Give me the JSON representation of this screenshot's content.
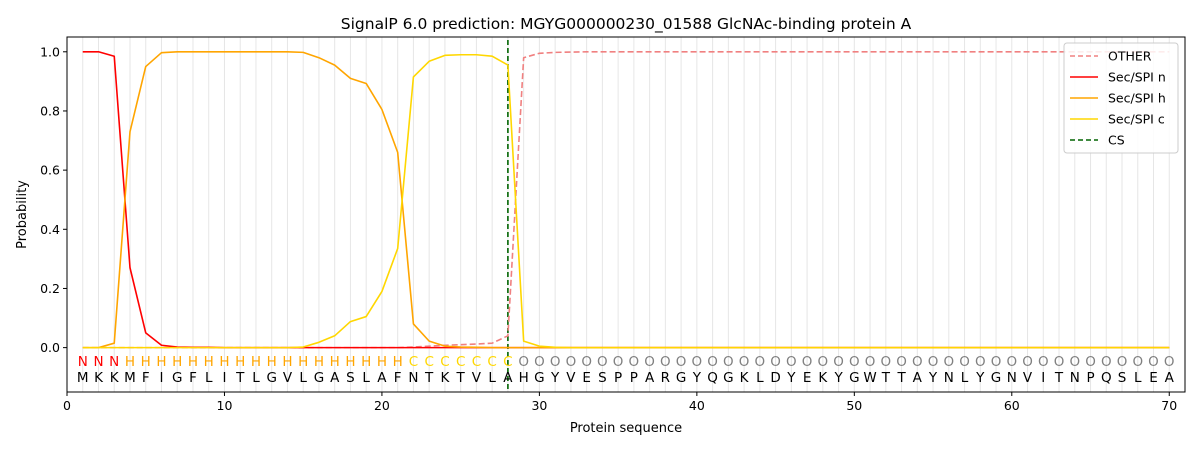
{
  "chart_data": {
    "type": "line",
    "title": "SignalP 6.0 prediction: MGYG000000230_01588 GlcNAc-binding protein A",
    "xlabel": "Protein sequence",
    "ylabel": "Probability",
    "xlim": [
      0,
      71
    ],
    "ylim": [
      -0.15,
      1.05
    ],
    "xticks": [
      0,
      10,
      20,
      30,
      40,
      50,
      60,
      70
    ],
    "yticks": [
      0.0,
      0.2,
      0.4,
      0.6,
      0.8,
      1.0
    ],
    "ytick_labels": [
      "0.0",
      "0.2",
      "0.4",
      "0.6",
      "0.8",
      "1.0"
    ],
    "grid": "vertical lines at each residue",
    "legend_position": "top-right",
    "sequence": [
      "M",
      "K",
      "K",
      "M",
      "F",
      "I",
      "G",
      "F",
      "L",
      "I",
      "T",
      "L",
      "G",
      "V",
      "L",
      "G",
      "A",
      "S",
      "L",
      "A",
      "F",
      "N",
      "T",
      "K",
      "T",
      "V",
      "L",
      "A",
      "H",
      "G",
      "Y",
      "V",
      "E",
      "S",
      "P",
      "P",
      "A",
      "R",
      "G",
      "Y",
      "Q",
      "G",
      "K",
      "L",
      "D",
      "Y",
      "E",
      "K",
      "Y",
      "G",
      "W",
      "T",
      "T",
      "A",
      "Y",
      "N",
      "L",
      "Y",
      "G",
      "N",
      "V",
      "I",
      "T",
      "N",
      "P",
      "Q",
      "S",
      "L",
      "E",
      "A"
    ],
    "labels": [
      "N",
      "N",
      "N",
      "H",
      "H",
      "H",
      "H",
      "H",
      "H",
      "H",
      "H",
      "H",
      "H",
      "H",
      "H",
      "H",
      "H",
      "H",
      "H",
      "H",
      "H",
      "C",
      "C",
      "C",
      "C",
      "C",
      "C",
      "C",
      "O",
      "O",
      "O",
      "O",
      "O",
      "O",
      "O",
      "O",
      "O",
      "O",
      "O",
      "O",
      "O",
      "O",
      "O",
      "O",
      "O",
      "O",
      "O",
      "O",
      "O",
      "O",
      "O",
      "O",
      "O",
      "O",
      "O",
      "O",
      "O",
      "O",
      "O",
      "O",
      "O",
      "O",
      "O",
      "O",
      "O",
      "O",
      "O",
      "O",
      "O",
      "O"
    ],
    "label_colors": {
      "N": "#ff0000",
      "H": "#ffa500",
      "C": "#ffd700",
      "O": "#808080"
    },
    "cleavage_site": 28,
    "series": [
      {
        "name": "OTHER",
        "color": "#f08080",
        "dash": "dashed",
        "values": [
          0.0,
          0.0,
          0.0,
          0.0,
          0.0,
          0.0,
          0.0,
          0.0,
          0.0,
          0.0,
          0.0,
          0.0,
          0.0,
          0.0,
          0.0,
          0.0,
          0.0,
          0.0,
          0.0,
          0.0,
          0.0,
          0.002,
          0.005,
          0.008,
          0.01,
          0.012,
          0.015,
          0.04,
          0.98,
          0.995,
          0.998,
          0.999,
          1.0,
          1.0,
          1.0,
          1.0,
          1.0,
          1.0,
          1.0,
          1.0,
          1.0,
          1.0,
          1.0,
          1.0,
          1.0,
          1.0,
          1.0,
          1.0,
          1.0,
          1.0,
          1.0,
          1.0,
          1.0,
          1.0,
          1.0,
          1.0,
          1.0,
          1.0,
          1.0,
          1.0,
          1.0,
          1.0,
          1.0,
          1.0,
          1.0,
          1.0,
          1.0,
          1.0,
          1.0,
          1.0
        ]
      },
      {
        "name": "Sec/SPI n",
        "color": "#ff0000",
        "dash": "solid",
        "values": [
          1.0,
          1.0,
          0.985,
          0.27,
          0.05,
          0.008,
          0.002,
          0.001,
          0.001,
          0.0,
          0.0,
          0.0,
          0.0,
          0.0,
          0.0,
          0.0,
          0.0,
          0.0,
          0.0,
          0.0,
          0.0,
          0.0,
          0.0,
          0.0,
          0.0,
          0.0,
          0.0,
          0.0,
          0.0,
          0.0,
          0.0,
          0.0,
          0.0,
          0.0,
          0.0,
          0.0,
          0.0,
          0.0,
          0.0,
          0.0,
          0.0,
          0.0,
          0.0,
          0.0,
          0.0,
          0.0,
          0.0,
          0.0,
          0.0,
          0.0,
          0.0,
          0.0,
          0.0,
          0.0,
          0.0,
          0.0,
          0.0,
          0.0,
          0.0,
          0.0,
          0.0,
          0.0,
          0.0,
          0.0,
          0.0,
          0.0,
          0.0,
          0.0,
          0.0,
          0.0
        ]
      },
      {
        "name": "Sec/SPI h",
        "color": "#ffa500",
        "dash": "solid",
        "values": [
          0.0,
          0.0,
          0.015,
          0.73,
          0.95,
          0.997,
          1.0,
          1.0,
          1.0,
          1.0,
          1.0,
          1.0,
          1.0,
          1.0,
          0.998,
          0.98,
          0.955,
          0.91,
          0.893,
          0.805,
          0.66,
          0.08,
          0.022,
          0.005,
          0.002,
          0.001,
          0.0,
          0.0,
          0.0,
          0.0,
          0.0,
          0.0,
          0.0,
          0.0,
          0.0,
          0.0,
          0.0,
          0.0,
          0.0,
          0.0,
          0.0,
          0.0,
          0.0,
          0.0,
          0.0,
          0.0,
          0.0,
          0.0,
          0.0,
          0.0,
          0.0,
          0.0,
          0.0,
          0.0,
          0.0,
          0.0,
          0.0,
          0.0,
          0.0,
          0.0,
          0.0,
          0.0,
          0.0,
          0.0,
          0.0,
          0.0,
          0.0,
          0.0,
          0.0,
          0.0
        ]
      },
      {
        "name": "Sec/SPI c",
        "color": "#ffd700",
        "dash": "solid",
        "values": [
          0.0,
          0.0,
          0.0,
          0.0,
          0.0,
          0.0,
          0.0,
          0.0,
          0.0,
          0.0,
          0.0,
          0.0,
          0.0,
          0.0,
          0.002,
          0.018,
          0.04,
          0.088,
          0.105,
          0.19,
          0.335,
          0.915,
          0.968,
          0.988,
          0.99,
          0.99,
          0.985,
          0.955,
          0.022,
          0.005,
          0.001,
          0.0,
          0.0,
          0.0,
          0.0,
          0.0,
          0.0,
          0.0,
          0.0,
          0.0,
          0.0,
          0.0,
          0.0,
          0.0,
          0.0,
          0.0,
          0.0,
          0.0,
          0.0,
          0.0,
          0.0,
          0.0,
          0.0,
          0.0,
          0.0,
          0.0,
          0.0,
          0.0,
          0.0,
          0.0,
          0.0,
          0.0,
          0.0,
          0.0,
          0.0,
          0.0,
          0.0,
          0.0,
          0.0,
          0.0
        ]
      }
    ],
    "cs_legend": {
      "name": "CS",
      "color": "#006400",
      "dash": "dashed"
    }
  }
}
